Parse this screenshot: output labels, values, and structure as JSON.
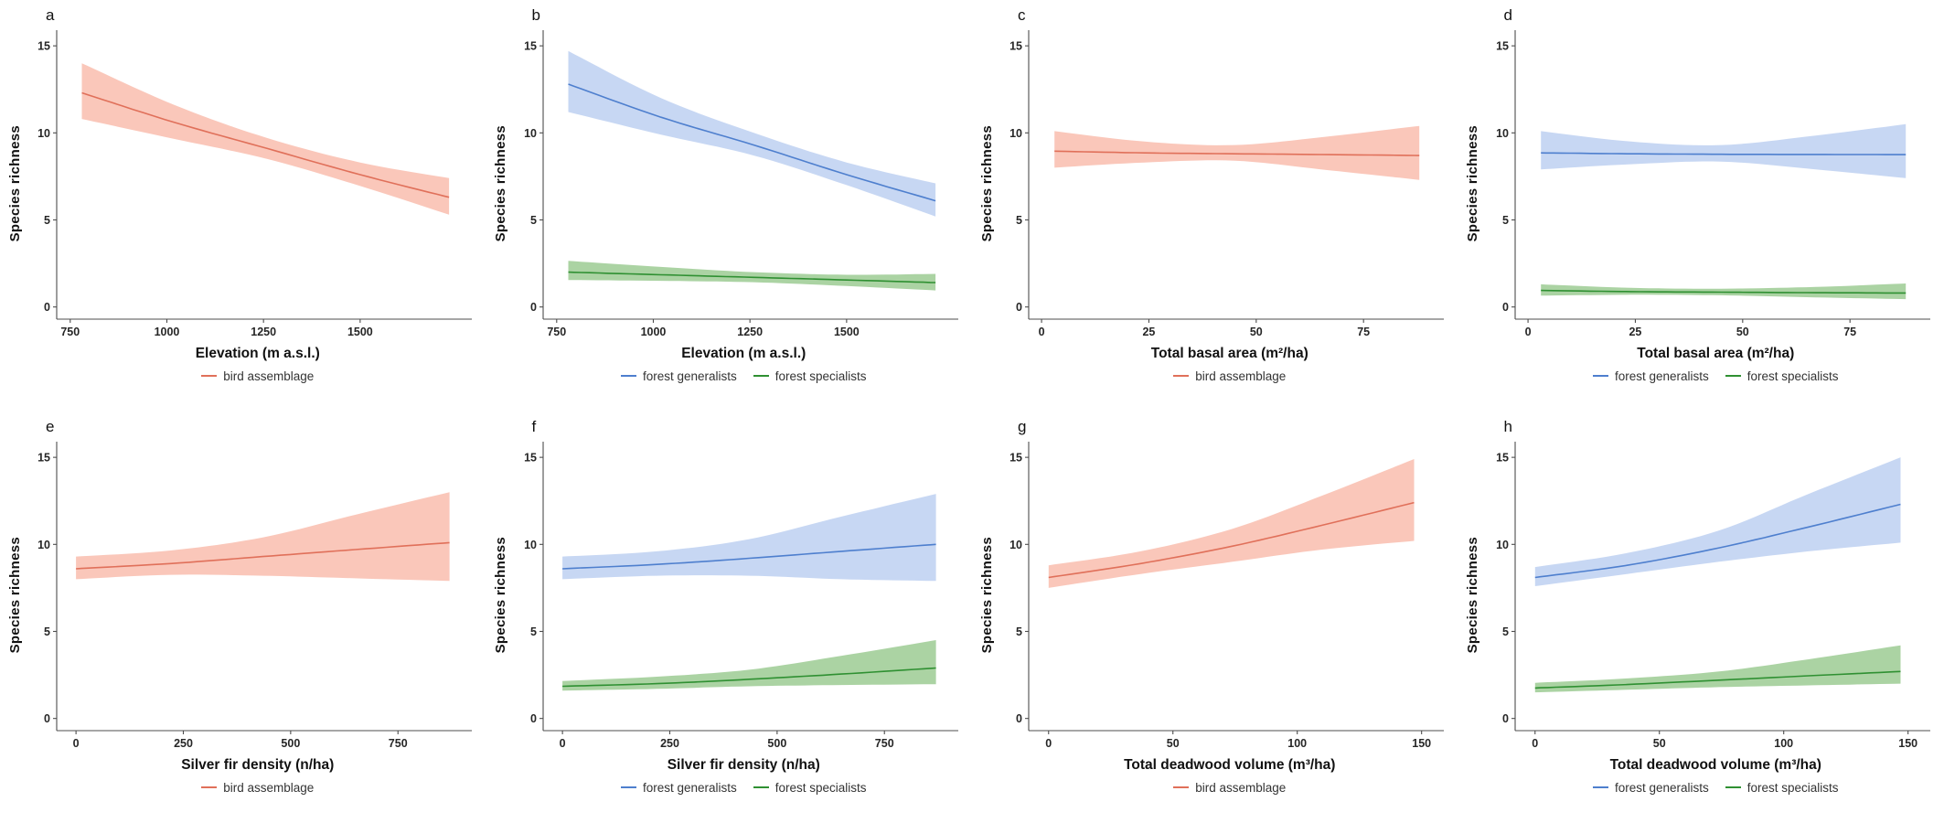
{
  "figure": {
    "type_note": "8-panel regression figure: species richness vs forest variables with 95% CI ribbons",
    "shared_ylabel": "Species richness"
  },
  "colors": {
    "salmon_line": "#E0705A",
    "salmon_band": "#FAC4B6",
    "blue_line": "#4E7FCE",
    "blue_band": "#C4D5F2",
    "green_line": "#2F9032",
    "green_band": "#A7D19E",
    "axis": "#4d4d4d"
  },
  "chart_data": [
    {
      "panel": "a",
      "type": "line",
      "xlabel": "Elevation (m a.s.l.)",
      "ylabel": "Species richness",
      "xlim": [
        715,
        1770
      ],
      "ylim": [
        -0.7,
        15.9
      ],
      "xticks": [
        750,
        1000,
        1250,
        1500
      ],
      "xtick_labels": [
        "750",
        "1000",
        "1250",
        "1500"
      ],
      "yticks": [
        0,
        5,
        10,
        15
      ],
      "ytick_labels": [
        "0",
        "5",
        "10",
        "15"
      ],
      "legend_position": "bottom",
      "series": [
        {
          "name": "bird assemblage",
          "line_color": "#E0705A",
          "band_color": "#FAC4B6",
          "x": [
            780,
            1020,
            1260,
            1500,
            1730
          ],
          "y": [
            12.3,
            10.6,
            9.1,
            7.6,
            6.3
          ],
          "upper": [
            14.0,
            11.6,
            9.7,
            8.3,
            7.4
          ],
          "lower": [
            10.8,
            9.65,
            8.5,
            6.95,
            5.3
          ]
        }
      ]
    },
    {
      "panel": "b",
      "type": "line",
      "xlabel": "Elevation (m a.s.l.)",
      "ylabel": "Species richness",
      "xlim": [
        715,
        1770
      ],
      "ylim": [
        -0.7,
        15.9
      ],
      "xticks": [
        750,
        1000,
        1250,
        1500
      ],
      "xtick_labels": [
        "750",
        "1000",
        "1250",
        "1500"
      ],
      "yticks": [
        0,
        5,
        10,
        15
      ],
      "ytick_labels": [
        "0",
        "5",
        "10",
        "15"
      ],
      "legend_position": "bottom",
      "series": [
        {
          "name": "forest generalists",
          "line_color": "#4E7FCE",
          "band_color": "#C4D5F2",
          "x": [
            780,
            1020,
            1260,
            1500,
            1730
          ],
          "y": [
            12.8,
            10.9,
            9.3,
            7.6,
            6.1
          ],
          "upper": [
            14.7,
            12.0,
            10.0,
            8.3,
            7.1
          ],
          "lower": [
            11.2,
            9.9,
            8.7,
            7.0,
            5.2
          ]
        },
        {
          "name": "forest specialists",
          "line_color": "#2F9032",
          "band_color": "#A7D19E",
          "x": [
            780,
            1020,
            1260,
            1500,
            1730
          ],
          "y": [
            2.0,
            1.85,
            1.7,
            1.55,
            1.4
          ],
          "upper": [
            2.65,
            2.3,
            2.0,
            1.85,
            1.9
          ],
          "lower": [
            1.55,
            1.5,
            1.42,
            1.2,
            0.95
          ]
        }
      ]
    },
    {
      "panel": "c",
      "type": "line",
      "xlabel": "Total basal area (m²/ha)",
      "ylabel": "Species richness",
      "xlim": [
        -3,
        92
      ],
      "ylim": [
        -0.7,
        15.9
      ],
      "xticks": [
        0,
        25,
        50,
        75
      ],
      "xtick_labels": [
        "0",
        "25",
        "50",
        "75"
      ],
      "yticks": [
        0,
        5,
        10,
        15
      ],
      "ytick_labels": [
        "0",
        "5",
        "10",
        "15"
      ],
      "legend_position": "bottom",
      "series": [
        {
          "name": "bird assemblage",
          "line_color": "#E0705A",
          "band_color": "#FAC4B6",
          "x": [
            3,
            24,
            45,
            67,
            88
          ],
          "y": [
            8.95,
            8.85,
            8.8,
            8.75,
            8.7
          ],
          "upper": [
            10.1,
            9.5,
            9.3,
            9.8,
            10.4
          ],
          "lower": [
            8.0,
            8.3,
            8.4,
            7.85,
            7.3
          ]
        }
      ]
    },
    {
      "panel": "d",
      "type": "line",
      "xlabel": "Total basal area (m²/ha)",
      "ylabel": "Species richness",
      "xlim": [
        -3,
        92
      ],
      "ylim": [
        -0.7,
        15.9
      ],
      "xticks": [
        0,
        25,
        50,
        75
      ],
      "xtick_labels": [
        "0",
        "25",
        "50",
        "75"
      ],
      "yticks": [
        0,
        5,
        10,
        15
      ],
      "ytick_labels": [
        "0",
        "5",
        "10",
        "15"
      ],
      "legend_position": "bottom",
      "series": [
        {
          "name": "forest generalists",
          "line_color": "#4E7FCE",
          "band_color": "#C4D5F2",
          "x": [
            3,
            24,
            45,
            67,
            88
          ],
          "y": [
            8.85,
            8.8,
            8.77,
            8.76,
            8.75
          ],
          "upper": [
            10.1,
            9.5,
            9.3,
            9.85,
            10.5
          ],
          "lower": [
            7.9,
            8.2,
            8.35,
            7.9,
            7.4
          ]
        },
        {
          "name": "forest specialists",
          "line_color": "#2F9032",
          "band_color": "#A7D19E",
          "x": [
            3,
            24,
            45,
            67,
            88
          ],
          "y": [
            0.95,
            0.88,
            0.85,
            0.82,
            0.8
          ],
          "upper": [
            1.3,
            1.1,
            1.05,
            1.15,
            1.35
          ],
          "lower": [
            0.65,
            0.7,
            0.67,
            0.55,
            0.45
          ]
        }
      ]
    },
    {
      "panel": "e",
      "type": "line",
      "xlabel": "Silver fir density (n/ha)",
      "ylabel": "Species richness",
      "xlim": [
        -45,
        905
      ],
      "ylim": [
        -0.7,
        15.9
      ],
      "xticks": [
        0,
        250,
        500,
        750
      ],
      "xtick_labels": [
        "0",
        "250",
        "500",
        "750"
      ],
      "yticks": [
        0,
        5,
        10,
        15
      ],
      "ytick_labels": [
        "0",
        "5",
        "10",
        "15"
      ],
      "legend_position": "bottom",
      "series": [
        {
          "name": "bird assemblage",
          "line_color": "#E0705A",
          "band_color": "#FAC4B6",
          "x": [
            0,
            220,
            435,
            650,
            870
          ],
          "y": [
            8.6,
            8.9,
            9.3,
            9.7,
            10.1
          ],
          "upper": [
            9.3,
            9.65,
            10.4,
            11.7,
            13.0
          ],
          "lower": [
            8.0,
            8.25,
            8.2,
            8.05,
            7.9
          ]
        }
      ]
    },
    {
      "panel": "f",
      "type": "line",
      "xlabel": "Silver fir density (n/ha)",
      "ylabel": "Species richness",
      "xlim": [
        -45,
        905
      ],
      "ylim": [
        -0.7,
        15.9
      ],
      "xticks": [
        0,
        250,
        500,
        750
      ],
      "xtick_labels": [
        "0",
        "250",
        "500",
        "750"
      ],
      "yticks": [
        0,
        5,
        10,
        15
      ],
      "ytick_labels": [
        "0",
        "5",
        "10",
        "15"
      ],
      "legend_position": "bottom",
      "series": [
        {
          "name": "forest generalists",
          "line_color": "#4E7FCE",
          "band_color": "#C4D5F2",
          "x": [
            0,
            220,
            435,
            650,
            870
          ],
          "y": [
            8.6,
            8.85,
            9.2,
            9.6,
            10.0
          ],
          "upper": [
            9.3,
            9.6,
            10.3,
            11.6,
            12.9
          ],
          "lower": [
            8.0,
            8.2,
            8.2,
            8.0,
            7.9
          ]
        },
        {
          "name": "forest specialists",
          "line_color": "#2F9032",
          "band_color": "#A7D19E",
          "x": [
            0,
            220,
            435,
            650,
            870
          ],
          "y": [
            1.85,
            2.0,
            2.25,
            2.55,
            2.9
          ],
          "upper": [
            2.15,
            2.4,
            2.8,
            3.6,
            4.5
          ],
          "lower": [
            1.6,
            1.7,
            1.85,
            1.92,
            1.97
          ]
        }
      ]
    },
    {
      "panel": "g",
      "type": "line",
      "xlabel": "Total deadwood volume (m³/ha)",
      "ylabel": "Species richness",
      "xlim": [
        -8,
        156
      ],
      "ylim": [
        -0.7,
        15.9
      ],
      "xticks": [
        0,
        50,
        100,
        150
      ],
      "xtick_labels": [
        "0",
        "50",
        "100",
        "150"
      ],
      "yticks": [
        0,
        5,
        10,
        15
      ],
      "ytick_labels": [
        "0",
        "5",
        "10",
        "15"
      ],
      "legend_position": "bottom",
      "series": [
        {
          "name": "bird assemblage",
          "line_color": "#E0705A",
          "band_color": "#FAC4B6",
          "x": [
            0,
            37,
            74,
            110,
            147
          ],
          "y": [
            8.1,
            8.9,
            9.9,
            11.1,
            12.4
          ],
          "upper": [
            8.8,
            9.6,
            10.9,
            12.8,
            14.9
          ],
          "lower": [
            7.5,
            8.3,
            9.0,
            9.7,
            10.2
          ]
        }
      ]
    },
    {
      "panel": "h",
      "type": "line",
      "xlabel": "Total deadwood volume (m³/ha)",
      "ylabel": "Species richness",
      "xlim": [
        -8,
        156
      ],
      "ylim": [
        -0.7,
        15.9
      ],
      "xticks": [
        0,
        50,
        100,
        150
      ],
      "xtick_labels": [
        "0",
        "50",
        "100",
        "150"
      ],
      "yticks": [
        0,
        5,
        10,
        15
      ],
      "ytick_labels": [
        "0",
        "5",
        "10",
        "15"
      ],
      "legend_position": "bottom",
      "series": [
        {
          "name": "forest generalists",
          "line_color": "#4E7FCE",
          "band_color": "#C4D5F2",
          "x": [
            0,
            37,
            74,
            110,
            147
          ],
          "y": [
            8.1,
            8.8,
            9.8,
            11.0,
            12.3
          ],
          "upper": [
            8.7,
            9.5,
            10.8,
            12.9,
            15.0
          ],
          "lower": [
            7.6,
            8.3,
            9.0,
            9.6,
            10.1
          ]
        },
        {
          "name": "forest specialists",
          "line_color": "#2F9032",
          "band_color": "#A7D19E",
          "x": [
            0,
            37,
            74,
            110,
            147
          ],
          "y": [
            1.75,
            1.95,
            2.2,
            2.45,
            2.7
          ],
          "upper": [
            2.05,
            2.3,
            2.7,
            3.4,
            4.2
          ],
          "lower": [
            1.5,
            1.65,
            1.8,
            1.9,
            2.0
          ]
        }
      ]
    }
  ]
}
